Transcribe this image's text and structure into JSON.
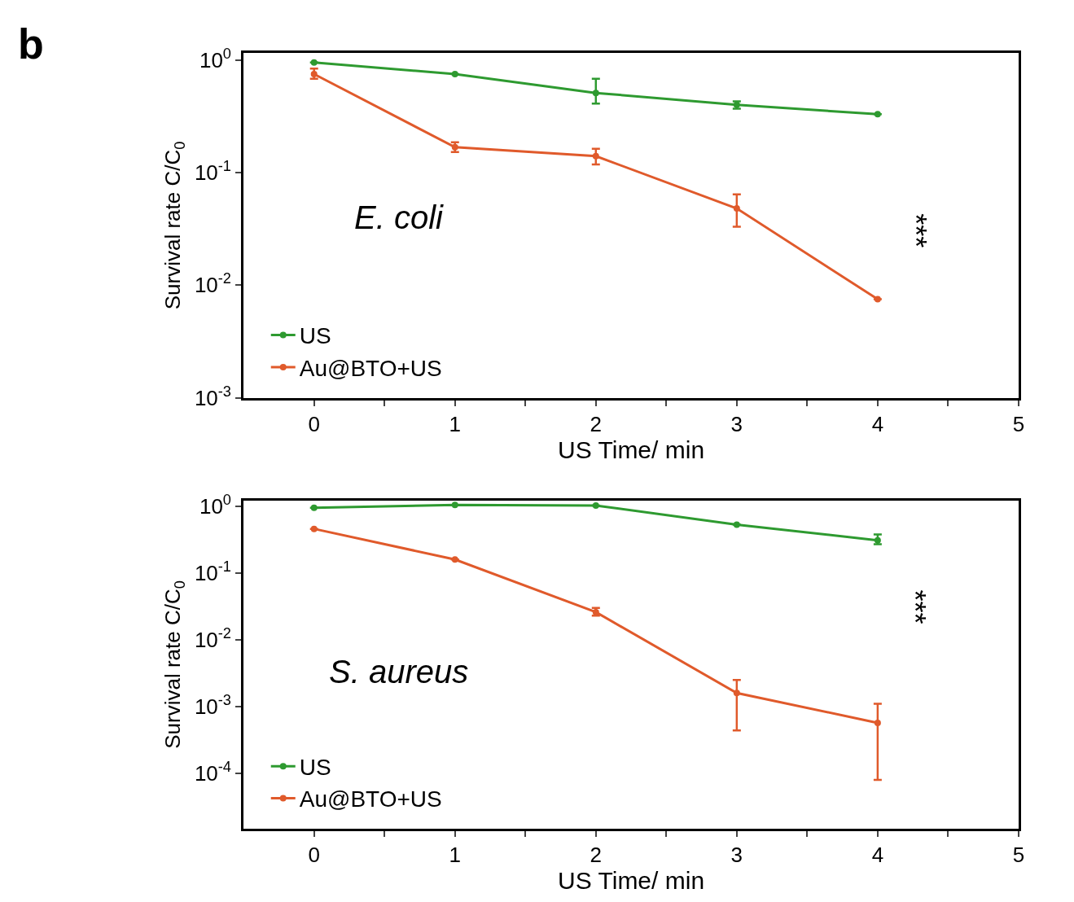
{
  "chart_data": [
    {
      "type": "line",
      "title": "b",
      "xlabel": "US Time/ min",
      "ylabel": "Survival rate C/C$_{0}$",
      "log": "y",
      "legend": "bottom left",
      "marker": "circle",
      "line_style": "solid",
      "x": [
        0,
        1,
        2,
        3,
        4
      ],
      "xlim": [
        -0.5,
        5
      ],
      "xticks": [
        0,
        {
          "value": 0.5,
          "label": null
        },
        1,
        {
          "value": 1.5,
          "label": null
        },
        2,
        {
          "value": 2.5,
          "label": null
        },
        3,
        {
          "value": 3.5,
          "label": null
        },
        4,
        {
          "value": 4.5,
          "label": null
        },
        5
      ],
      "ylim": [
        0.001,
        1.15
      ],
      "yticks": [
        {
          "value": 1,
          "label": "10$^{0}$"
        },
        {
          "value": 0.1,
          "label": "10$^{-1}$"
        },
        {
          "value": 0.01,
          "label": "10$^{-2}$"
        },
        {
          "value": 0.001,
          "label": "10$^{-3}$"
        }
      ],
      "series": [
        {
          "name": "US",
          "color": "#2e9a30",
          "values": [
            0.95,
            0.75,
            0.51,
            0.4,
            0.33
          ],
          "errors": [
            null,
            null,
            [
              0.41,
              0.68
            ],
            [
              0.37,
              0.43
            ],
            null
          ]
        },
        {
          "name": "Au@BTO+US",
          "color": "#e05a2b",
          "values": [
            0.75,
            0.168,
            0.14,
            0.048,
            0.0075
          ],
          "errors": [
            [
              0.68,
              0.84
            ],
            [
              0.152,
              0.186
            ],
            [
              0.118,
              0.163
            ],
            [
              0.033,
              0.064
            ],
            null
          ]
        }
      ],
      "annotations": [
        "E. coli",
        "***"
      ]
    },
    {
      "type": "line",
      "xlabel": "US Time/ min",
      "ylabel": "Survival rate C/C$_{0}$",
      "log": "y",
      "legend": "bottom left",
      "marker": "circle",
      "line_style": "solid",
      "x": [
        0,
        1,
        2,
        3,
        4
      ],
      "xlim": [
        -0.5,
        5
      ],
      "xticks": [
        0,
        {
          "value": 0.5,
          "label": null
        },
        1,
        {
          "value": 1.5,
          "label": null
        },
        2,
        {
          "value": 2.5,
          "label": null
        },
        3,
        {
          "value": 3.5,
          "label": null
        },
        4,
        {
          "value": 4.5,
          "label": null
        },
        5
      ],
      "ylim": [
        1.5e-05,
        1.2
      ],
      "yticks": [
        {
          "value": 1,
          "label": "10$^{0}$"
        },
        {
          "value": 0.1,
          "label": "10$^{-1}$"
        },
        {
          "value": 0.01,
          "label": "10$^{-2}$"
        },
        {
          "value": 0.001,
          "label": "10$^{-3}$"
        },
        {
          "value": 0.0001,
          "label": "10$^{-4}$"
        }
      ],
      "series": [
        {
          "name": "US",
          "color": "#2e9a30",
          "values": [
            0.95,
            1.05,
            1.03,
            0.53,
            0.31
          ],
          "errors": [
            null,
            null,
            null,
            null,
            [
              0.27,
              0.38
            ]
          ]
        },
        {
          "name": "Au@BTO+US",
          "color": "#e05a2b",
          "values": [
            0.46,
            0.16,
            0.026,
            0.0016,
            0.00057
          ],
          "errors": [
            null,
            null,
            [
              0.023,
              0.03
            ],
            [
              0.00044,
              0.0025
            ],
            [
              8e-05,
              0.0011
            ]
          ]
        }
      ],
      "annotations": [
        "S. aureus",
        "***"
      ]
    }
  ]
}
